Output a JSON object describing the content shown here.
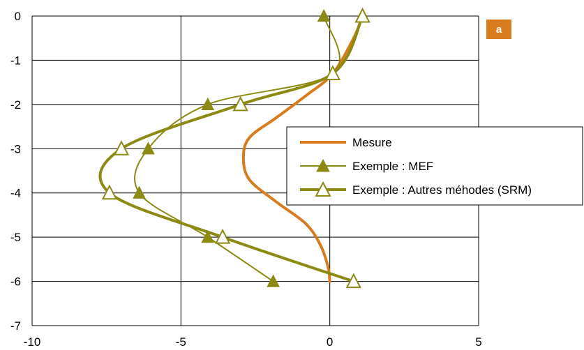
{
  "chart_data": {
    "type": "line",
    "badge": "a",
    "xlim": [
      -10,
      5
    ],
    "ylim": [
      -7,
      0
    ],
    "x_ticks": [
      -10,
      -5,
      0,
      5
    ],
    "y_ticks": [
      0,
      -1,
      -2,
      -3,
      -4,
      -5,
      -6,
      -7
    ],
    "grid": true,
    "legend_position": "right",
    "series": [
      {
        "name": "Mesure",
        "color": "#d97b1f",
        "marker": "none",
        "x": [
          1.1,
          0.8,
          0.1,
          -0.8,
          -1.8,
          -2.7,
          -2.9,
          -2.7,
          -1.8,
          -0.8,
          -0.3,
          -0.05,
          0.0
        ],
        "y": [
          0.0,
          -0.5,
          -1.3,
          -1.8,
          -2.3,
          -2.75,
          -3.2,
          -3.7,
          -4.2,
          -4.7,
          -5.2,
          -5.7,
          -6.0
        ]
      },
      {
        "name": "Exemple : MEF",
        "color": "#8c8a12",
        "marker": "filled-triangle",
        "x": [
          -0.2,
          0.1,
          -4.1,
          -6.1,
          -6.4,
          -4.1,
          -1.9
        ],
        "y": [
          0.0,
          -1.3,
          -2.0,
          -3.0,
          -4.0,
          -5.0,
          -6.0
        ]
      },
      {
        "name": "Exemple : Autres méhodes (SRM)",
        "color": "#8c8a12",
        "marker": "open-triangle",
        "x": [
          1.1,
          0.1,
          -3.0,
          -7.0,
          -7.4,
          -3.6,
          0.8
        ],
        "y": [
          0.0,
          -1.3,
          -2.0,
          -3.0,
          -4.0,
          -5.0,
          -6.0
        ]
      }
    ]
  }
}
